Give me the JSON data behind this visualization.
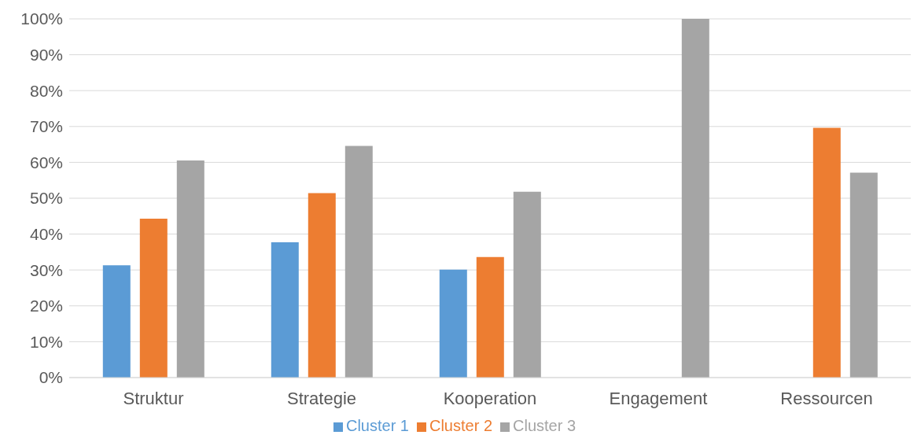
{
  "chart_data": {
    "type": "bar",
    "categories": [
      "Struktur",
      "Strategie",
      "Kooperation",
      "Engagement",
      "Ressourcen"
    ],
    "series": [
      {
        "name": "Cluster 1",
        "color": "#5b9bd5",
        "values": [
          31.3,
          37.7,
          30.1,
          0,
          0
        ]
      },
      {
        "name": "Cluster 2",
        "color": "#ed7d31",
        "values": [
          44.3,
          51.4,
          33.6,
          0,
          69.6
        ]
      },
      {
        "name": "Cluster 3",
        "color": "#a5a5a5",
        "values": [
          60.5,
          64.6,
          51.8,
          100,
          57.1
        ]
      }
    ],
    "ylim": [
      0,
      100
    ],
    "yticks": [
      {
        "value": 0,
        "label": "0%"
      },
      {
        "value": 10,
        "label": "10%"
      },
      {
        "value": 20,
        "label": "20%"
      },
      {
        "value": 30,
        "label": "30%"
      },
      {
        "value": 40,
        "label": "40%"
      },
      {
        "value": 50,
        "label": "50%"
      },
      {
        "value": 60,
        "label": "60%"
      },
      {
        "value": 70,
        "label": "70%"
      },
      {
        "value": 80,
        "label": "80%"
      },
      {
        "value": 90,
        "label": "90%"
      },
      {
        "value": 100,
        "label": "100%"
      }
    ],
    "grid": "y",
    "legend": "bottom"
  }
}
